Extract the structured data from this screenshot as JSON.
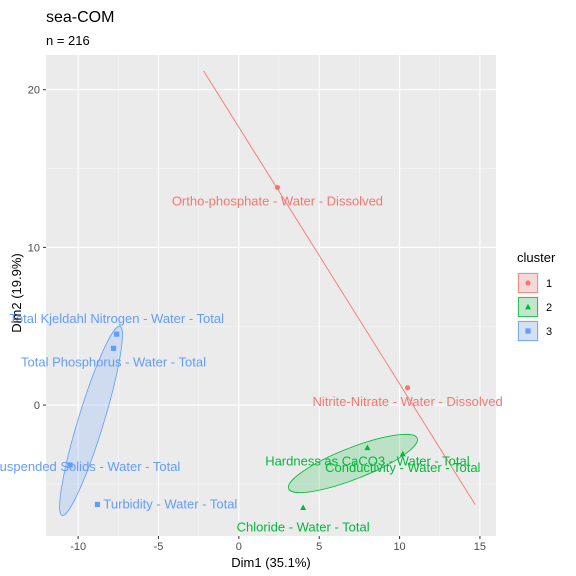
{
  "chart_data": {
    "type": "scatter",
    "title": "sea-COM",
    "subtitle": "n = 216",
    "xlabel": "Dim1 (35.1%)",
    "ylabel": "Dim2 (19.9%)",
    "xlim": [
      -12,
      16
    ],
    "ylim": [
      -8.3,
      22.2
    ],
    "x_ticks": [
      -10,
      -5,
      0,
      5,
      10,
      15
    ],
    "y_ticks": [
      0,
      10,
      20
    ],
    "grid": true,
    "legend": {
      "title": "cluster",
      "placement": "right",
      "entries": [
        "1",
        "2",
        "3"
      ]
    },
    "series": [
      {
        "name": "1",
        "color": "#F8766D",
        "shape": "circle",
        "points": [
          {
            "label": "Ortho-phosphate - Water - Dissolved",
            "x": 2.4,
            "y": 13.8
          },
          {
            "label": "Nitrite-Nitrate - Water - Dissolved",
            "x": 10.5,
            "y": 1.1
          }
        ],
        "ellipse_line": {
          "x1": -2.2,
          "y1": 21.2,
          "x2": 14.7,
          "y2": -6.3
        }
      },
      {
        "name": "2",
        "color": "#00BA38",
        "shape": "triangle",
        "points": [
          {
            "label": "Hardness as CaCO3 - Water - Total",
            "x": 8.0,
            "y": -2.7
          },
          {
            "label": "Conductivity - Water - Total",
            "x": 10.2,
            "y": -3.1
          },
          {
            "label": "Chloride - Water - Total",
            "x": 4.0,
            "y": -6.5
          }
        ],
        "ellipse": {
          "cx": 7.1,
          "cy": -3.7,
          "p1x": 11.1,
          "p1y": -2.1,
          "p2x": 7.0,
          "p2y": -4.8
        }
      },
      {
        "name": "3",
        "color": "#619CFF",
        "shape": "square",
        "points": [
          {
            "label": "Total Kjeldahl Nitrogen - Water - Total",
            "x": -7.6,
            "y": 4.5
          },
          {
            "label": "Total Phosphorus - Water - Total",
            "x": -7.8,
            "y": 3.6
          },
          {
            "label": "Total Suspended Solids - Water - Total",
            "x": -10.5,
            "y": -3.8
          },
          {
            "label": "Turbidity - Water - Total",
            "x": -8.8,
            "y": -6.3
          }
        ],
        "ellipse": {
          "cx": -9.2,
          "cy": -1.0,
          "p1x": -7.4,
          "p1y": 5.0,
          "p2x": -8.4,
          "p2y": -1.1
        }
      }
    ]
  }
}
